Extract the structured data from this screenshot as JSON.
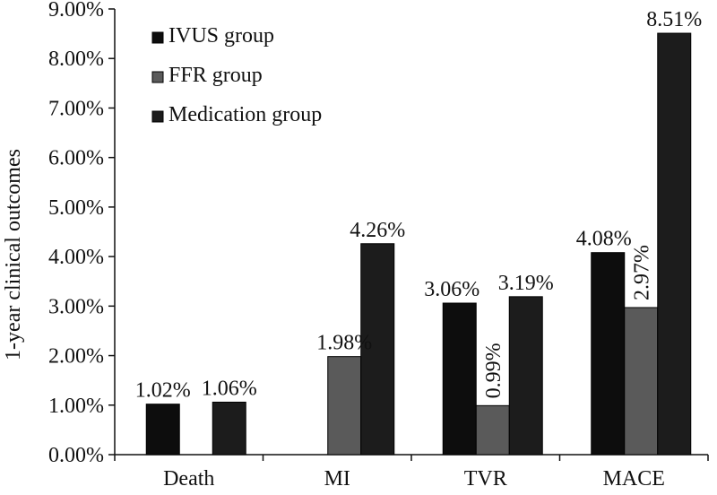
{
  "chart_data": {
    "type": "bar",
    "title": "",
    "xlabel": "",
    "ylabel": "1-year clinical outcomes",
    "ylim": [
      0,
      9
    ],
    "yticks": [
      "0.00%",
      "1.00%",
      "2.00%",
      "3.00%",
      "4.00%",
      "5.00%",
      "6.00%",
      "7.00%",
      "8.00%",
      "9.00%"
    ],
    "categories": [
      "Death",
      "MI",
      "TVR",
      "MACE"
    ],
    "series": [
      {
        "name": "IVUS group",
        "color": "#0d0d0d",
        "values": [
          1.02,
          null,
          3.06,
          4.08
        ],
        "labels": [
          "1.02%",
          "",
          "3.06%",
          "4.08%"
        ]
      },
      {
        "name": "FFR group",
        "color": "#5a5a5a",
        "values": [
          null,
          1.98,
          0.99,
          2.97
        ],
        "labels": [
          "",
          "1.98%",
          "0.99%",
          "2.97%"
        ]
      },
      {
        "name": "Medication group",
        "color": "#1c1c1c",
        "values": [
          1.06,
          4.26,
          3.19,
          8.51
        ],
        "labels": [
          "1.06%",
          "4.26%",
          "3.19%",
          "8.51%"
        ]
      }
    ],
    "legend_position": "top-left",
    "grid": false
  }
}
